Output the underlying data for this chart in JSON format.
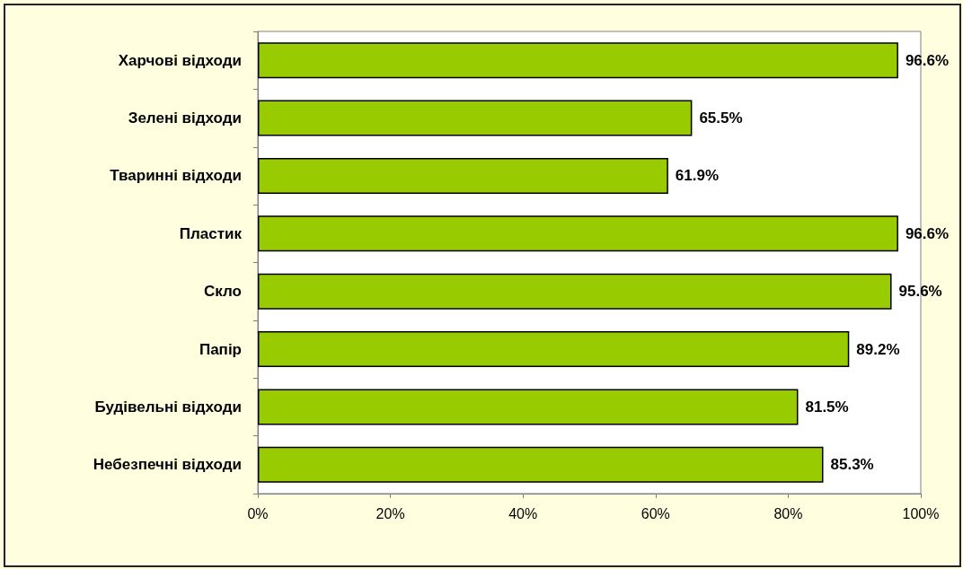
{
  "chart_data": {
    "type": "bar",
    "orientation": "horizontal",
    "categories": [
      "Харчові відходи",
      "Зелені відходи",
      "Тваринні відходи",
      "Пластик",
      "Скло",
      "Папір",
      "Будівельні відходи",
      "Небезпечні відходи"
    ],
    "values": [
      96.6,
      65.5,
      61.9,
      96.6,
      95.6,
      89.2,
      81.5,
      85.3
    ],
    "value_labels": [
      "96.6%",
      "65.5%",
      "61.9%",
      "96.6%",
      "95.6%",
      "89.2%",
      "81.5%",
      "85.3%"
    ],
    "color": "#99cc00",
    "xlim": [
      0,
      100
    ],
    "xticks": [
      {
        "value": 0,
        "label": "0%"
      },
      {
        "value": 20,
        "label": "20%"
      },
      {
        "value": 40,
        "label": "40%"
      },
      {
        "value": 60,
        "label": "60%"
      },
      {
        "value": 80,
        "label": "80%"
      },
      {
        "value": 100,
        "label": "100%"
      }
    ],
    "grid": false
  }
}
